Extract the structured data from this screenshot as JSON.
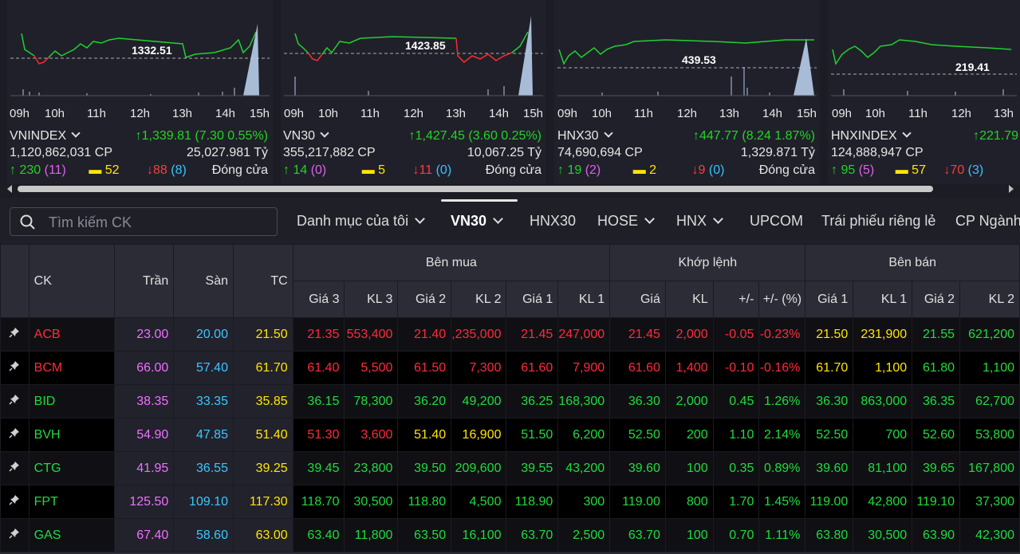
{
  "index_cards": [
    {
      "name": "VNINDEX",
      "change": "1,339.81 (7.30 0.55%)",
      "ref_value": "1332.51",
      "volume": "1,120,862,031 CP",
      "value": "25,027.981 Tỷ",
      "adv": "230",
      "ceil": "(11)",
      "unch": "52",
      "dec": "88",
      "floor": "(8)",
      "status": "Đóng cửa",
      "hours": [
        "09h",
        "10h",
        "11h",
        "12h",
        "13h",
        "14h",
        "15h"
      ]
    },
    {
      "name": "VN30",
      "change": "1,427.45 (3.60 0.25%)",
      "ref_value": "1423.85",
      "volume": "355,217,882 CP",
      "value": "10,067.25 Tỷ",
      "adv": "14",
      "ceil": "(0)",
      "unch": "5",
      "dec": "11",
      "floor": "(0)",
      "status": "Đóng cửa",
      "hours": [
        "09h",
        "10h",
        "11h",
        "12h",
        "13h",
        "14h",
        "15h"
      ]
    },
    {
      "name": "HNX30",
      "change": "447.77 (8.24 1.87%)",
      "ref_value": "439.53",
      "volume": "74,690,694 CP",
      "value": "1,329.871 Tỷ",
      "adv": "19",
      "ceil": "(2)",
      "unch": "2",
      "dec": "9",
      "floor": "(0)",
      "status": "Đóng cửa",
      "hours": [
        "09h",
        "10h",
        "11h",
        "12h",
        "13h",
        "14h",
        "15h"
      ]
    },
    {
      "name": "HNXINDEX",
      "change": "221.79",
      "ref_value": "219.41",
      "volume": "124,888,947 CP",
      "value": "",
      "adv": "95",
      "ceil": "(5)",
      "unch": "57",
      "dec": "70",
      "floor": "(3)",
      "status": "",
      "hours": [
        "09h",
        "10h",
        "11h",
        "12h",
        "13h"
      ]
    }
  ],
  "search": {
    "placeholder": "Tìm kiếm CK"
  },
  "tabs": [
    "Danh mục của tôi",
    "VN30",
    "HNX30",
    "HOSE",
    "HNX",
    "UPCOM",
    "Trái phiếu riêng lẻ",
    "CP Ngành"
  ],
  "table": {
    "headers": {
      "ck": "CK",
      "ceil": "Trần",
      "floor": "Sàn",
      "ref": "TC",
      "buy": "Bên mua",
      "match": "Khớp lệnh",
      "sell": "Bên bán",
      "buy_cols": [
        "Giá 3",
        "KL 3",
        "Giá 2",
        "KL 2",
        "Giá 1",
        "KL 1"
      ],
      "match_cols": [
        "Giá",
        "KL",
        "+/-",
        "+/- (%)"
      ],
      "sell_cols": [
        "Giá 1",
        "KL 1",
        "Giá 2",
        "KL 2"
      ]
    },
    "rows": [
      {
        "ck": "ACB",
        "ceil": "23.00",
        "floor": "20.00",
        "ref": "21.50",
        "b3": "21.35",
        "v3": "553,400",
        "b2": "21.40",
        "v2": ",235,000",
        "b1": "21.45",
        "v1": "247,000",
        "mp": "21.45",
        "mv": "2,000",
        "ch": "-0.05",
        "pc": "-0.23%",
        "s1": "21.50",
        "sv1": "231,900",
        "s2": "21.55",
        "sv2": "621,200"
      },
      {
        "ck": "BCM",
        "ceil": "66.00",
        "floor": "57.40",
        "ref": "61.70",
        "b3": "61.40",
        "v3": "5,500",
        "b2": "61.50",
        "v2": "7,300",
        "b1": "61.60",
        "v1": "7,900",
        "mp": "61.60",
        "mv": "1,400",
        "ch": "-0.10",
        "pc": "-0.16%",
        "s1": "61.70",
        "sv1": "1,100",
        "s2": "61.80",
        "sv2": "1,100"
      },
      {
        "ck": "BID",
        "ceil": "38.35",
        "floor": "33.35",
        "ref": "35.85",
        "b3": "36.15",
        "v3": "78,300",
        "b2": "36.20",
        "v2": "49,200",
        "b1": "36.25",
        "v1": "168,300",
        "mp": "36.30",
        "mv": "2,000",
        "ch": "0.45",
        "pc": "1.26%",
        "s1": "36.30",
        "sv1": "863,000",
        "s2": "36.35",
        "sv2": "62,700"
      },
      {
        "ck": "BVH",
        "ceil": "54.90",
        "floor": "47.85",
        "ref": "51.40",
        "b3": "51.30",
        "v3": "3,600",
        "b2": "51.40",
        "v2": "16,900",
        "b1": "51.50",
        "v1": "6,200",
        "mp": "52.50",
        "mv": "200",
        "ch": "1.10",
        "pc": "2.14%",
        "s1": "52.50",
        "sv1": "700",
        "s2": "52.60",
        "sv2": "53,800"
      },
      {
        "ck": "CTG",
        "ceil": "41.95",
        "floor": "36.55",
        "ref": "39.25",
        "b3": "39.45",
        "v3": "23,800",
        "b2": "39.50",
        "v2": "209,600",
        "b1": "39.55",
        "v1": "43,200",
        "mp": "39.60",
        "mv": "100",
        "ch": "0.35",
        "pc": "0.89%",
        "s1": "39.60",
        "sv1": "81,100",
        "s2": "39.65",
        "sv2": "167,800"
      },
      {
        "ck": "FPT",
        "ceil": "125.50",
        "floor": "109.10",
        "ref": "117.30",
        "b3": "118.70",
        "v3": "30,500",
        "b2": "118.80",
        "v2": "4,500",
        "b1": "118.90",
        "v1": "300",
        "mp": "119.00",
        "mv": "800",
        "ch": "1.70",
        "pc": "1.45%",
        "s1": "119.00",
        "sv1": "42,800",
        "s2": "119.10",
        "sv2": "37,300"
      },
      {
        "ck": "GAS",
        "ceil": "67.40",
        "floor": "58.60",
        "ref": "63.00",
        "b3": "63.40",
        "v3": "11,800",
        "b2": "63.50",
        "v2": "16,100",
        "b1": "63.70",
        "v1": "2,500",
        "mp": "63.70",
        "mv": "100",
        "ch": "0.70",
        "pc": "1.11%",
        "s1": "63.80",
        "sv1": "30,500",
        "s2": "63.90",
        "sv2": "42,300"
      }
    ]
  },
  "colors": {
    "up": "#1fdc3c",
    "down": "#ff2a3a",
    "ceil": "#f070ff",
    "floor": "#38c8ff",
    "ref": "#ffe600"
  }
}
